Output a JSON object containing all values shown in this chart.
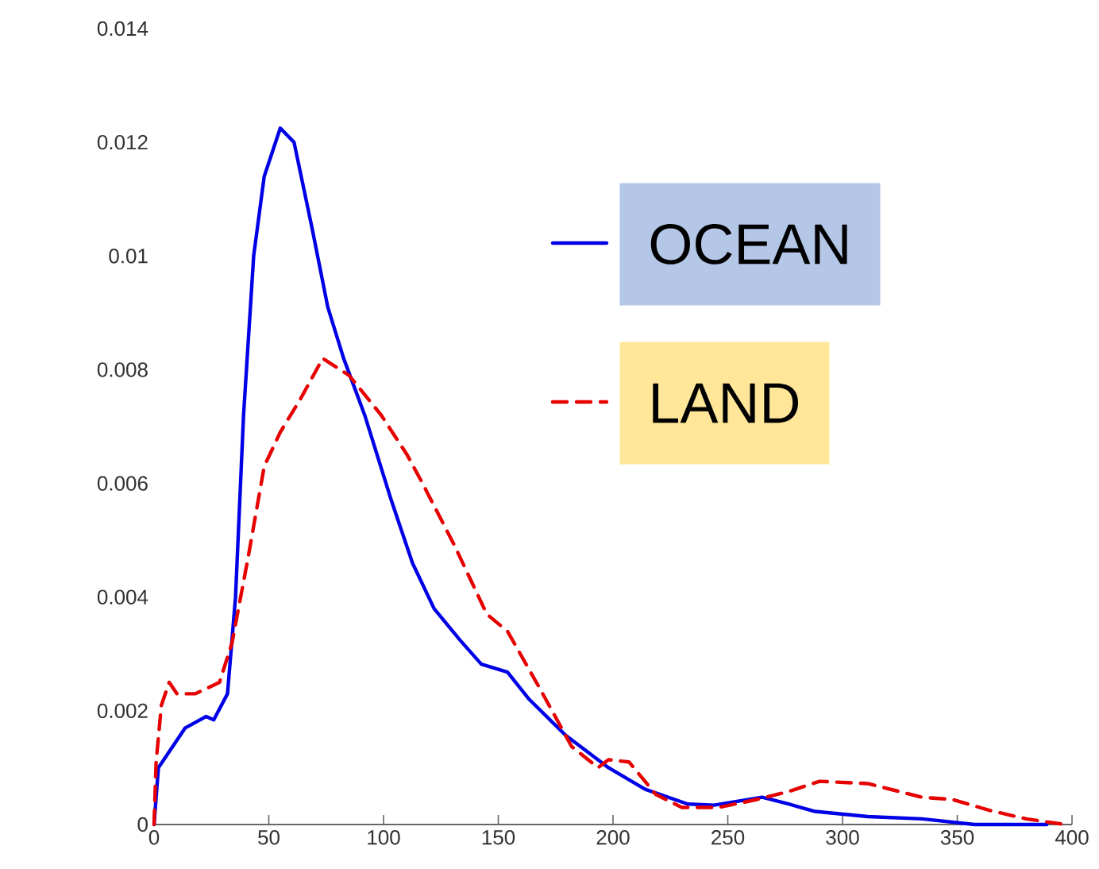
{
  "chart_data": {
    "type": "line",
    "xlim": [
      0,
      400
    ],
    "xticks": [
      0,
      50,
      100,
      150,
      200,
      250,
      300,
      350,
      400
    ],
    "ylim": [
      0,
      0.014
    ],
    "yticks": [
      0,
      0.002,
      0.004,
      0.006,
      0.008,
      0.01,
      0.012,
      0.014
    ],
    "legend": "right",
    "grid": false,
    "series": [
      {
        "name": "OCEAN",
        "color": "#0000e6",
        "line_style": "solid",
        "x": [
          0,
          1.9,
          13.6,
          22.7,
          26,
          32,
          35.5,
          39,
          43.4,
          48,
          55,
          61,
          68.8,
          75.7,
          82.6,
          91.8,
          103,
          112.6,
          122,
          133.4,
          142.6,
          154,
          163.5,
          179.6,
          198,
          214,
          232.6,
          244,
          265,
          276.5,
          288,
          311,
          334.6,
          357.6,
          389
        ],
        "values": [
          0,
          0.001,
          0.0017,
          0.0019,
          0.00184,
          0.0023,
          0.004,
          0.0072,
          0.01,
          0.0114,
          0.01225,
          0.012,
          0.0105,
          0.0091,
          0.0082,
          0.0072,
          0.00575,
          0.0046,
          0.0038,
          0.00324,
          0.00282,
          0.00268,
          0.0022,
          0.00156,
          0.001,
          0.00062,
          0.00036,
          0.00034,
          0.00048,
          0.00036,
          0.00023,
          0.00014,
          0.0001,
          0,
          0
        ]
      },
      {
        "name": "LAND",
        "color": "#e60000",
        "line_style": "dashed",
        "x": [
          0,
          0.9,
          3.2,
          6.6,
          10,
          18,
          28.5,
          34,
          41,
          48,
          55,
          64,
          73.5,
          85,
          99,
          110.3,
          117,
          131,
          145,
          154,
          168,
          182,
          193.5,
          198,
          207,
          218.6,
          230,
          246,
          262.6,
          276.5,
          290,
          311,
          334.6,
          348,
          364,
          380,
          397
        ],
        "values": [
          0,
          0.0011,
          0.0021,
          0.0025,
          0.0023,
          0.0023,
          0.0025,
          0.0032,
          0.0047,
          0.0063,
          0.0069,
          0.0075,
          0.0082,
          0.0079,
          0.0072,
          0.0065,
          0.006,
          0.0049,
          0.0037,
          0.0034,
          0.0024,
          0.00137,
          0.001,
          0.00114,
          0.0011,
          0.00053,
          0.0003,
          0.0003,
          0.00044,
          0.00058,
          0.00076,
          0.00072,
          0.00048,
          0.00044,
          0.00025,
          0.0001,
          0
        ]
      }
    ]
  }
}
